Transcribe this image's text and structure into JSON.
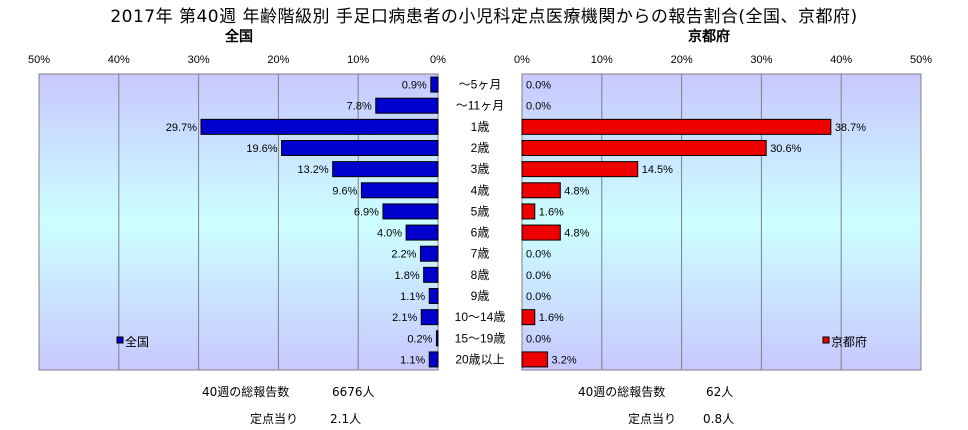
{
  "title": "2017年 第40週 年齢階級別 手足口病患者の小児科定点医療機関からの報告割合(全国、京都府)",
  "colors": {
    "national": "#0000cc",
    "kyoto": "#ee0000"
  },
  "chart_data": [
    {
      "type": "bar",
      "orientation": "horizontal",
      "title": "全国",
      "legend": "全国",
      "legend_position": "bottom-left",
      "direction": "right-to-left",
      "ticks": [
        "50%",
        "40%",
        "30%",
        "20%",
        "10%",
        "0%"
      ],
      "xlim": [
        0,
        50
      ],
      "grid": true,
      "categories": [
        "～5ヶ月",
        "～11ヶ月",
        "1歳",
        "2歳",
        "3歳",
        "4歳",
        "5歳",
        "6歳",
        "7歳",
        "8歳",
        "9歳",
        "10～14歳",
        "15～19歳",
        "20歳以上"
      ],
      "values": [
        0.9,
        7.8,
        29.7,
        19.6,
        13.2,
        9.6,
        6.9,
        4.0,
        2.2,
        1.8,
        1.1,
        2.1,
        0.2,
        1.1
      ],
      "labels": [
        "0.9%",
        "7.8%",
        "29.7%",
        "19.6%",
        "13.2%",
        "9.6%",
        "6.9%",
        "4.0%",
        "2.2%",
        "1.8%",
        "1.1%",
        "2.1%",
        "0.2%",
        "1.1%"
      ]
    },
    {
      "type": "bar",
      "orientation": "horizontal",
      "title": "京都府",
      "legend": "京都府",
      "legend_position": "bottom-right",
      "direction": "left-to-right",
      "ticks": [
        "0%",
        "10%",
        "20%",
        "30%",
        "40%",
        "50%"
      ],
      "xlim": [
        0,
        50
      ],
      "grid": true,
      "categories": [
        "～5ヶ月",
        "～11ヶ月",
        "1歳",
        "2歳",
        "3歳",
        "4歳",
        "5歳",
        "6歳",
        "7歳",
        "8歳",
        "9歳",
        "10～14歳",
        "15～19歳",
        "20歳以上"
      ],
      "values": [
        0.0,
        0.0,
        38.7,
        30.6,
        14.5,
        4.8,
        1.6,
        4.8,
        0.0,
        0.0,
        0.0,
        1.6,
        0.0,
        3.2
      ],
      "labels": [
        "0.0%",
        "0.0%",
        "38.7%",
        "30.6%",
        "14.5%",
        "4.8%",
        "1.6%",
        "4.8%",
        "0.0%",
        "0.0%",
        "0.0%",
        "1.6%",
        "0.0%",
        "3.2%"
      ]
    }
  ],
  "footer": {
    "national": {
      "total_label": "40週の総報告数",
      "total_value": "6676人",
      "per_label": "定点当り",
      "per_value": "2.1人"
    },
    "kyoto": {
      "total_label": "40週の総報告数",
      "total_value": "62人",
      "per_label": "定点当り",
      "per_value": "0.8人"
    }
  }
}
